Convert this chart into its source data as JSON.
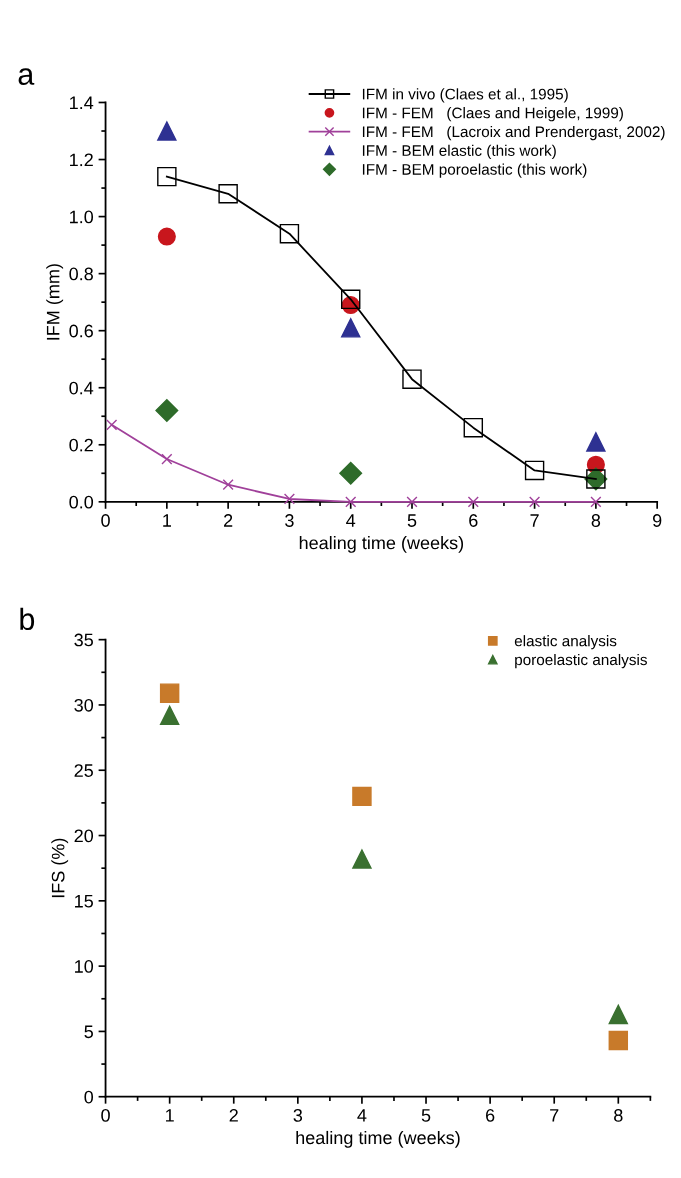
{
  "chart_data": [
    {
      "type": "scatter",
      "title": "a",
      "xlabel": "healing time (weeks)",
      "ylabel": "IFM (mm)",
      "xlim": [
        0,
        9
      ],
      "xticks": [
        0,
        1,
        2,
        3,
        4,
        5,
        6,
        7,
        8,
        9
      ],
      "ylim": [
        0,
        1.4
      ],
      "yticks": [
        {
          "value": 0,
          "label": "0.0"
        },
        0.2,
        0.4,
        0.6,
        0.8,
        {
          "value": 1.0,
          "label": "1.0"
        },
        1.2,
        1.4
      ],
      "grid": false,
      "legend": "top right",
      "series": [
        {
          "name": "IFM in vivo (Claes et al., 1995)",
          "type": "line",
          "marker": "square",
          "color": "#000000",
          "x": [
            1,
            2,
            3,
            4,
            5,
            6,
            7,
            8
          ],
          "values": [
            1.14,
            1.08,
            0.94,
            0.71,
            0.43,
            0.26,
            0.11,
            0.08
          ]
        },
        {
          "name": "IFM - FEM   (Claes and Heigele, 1999)",
          "marker": "circle",
          "color": "#c8161d",
          "x": [
            1,
            4,
            8
          ],
          "values": [
            0.93,
            0.69,
            0.13
          ]
        },
        {
          "name": "IFM - FEM   (Lacroix and Prendergast, 2002)",
          "type": "line",
          "marker": "cross",
          "color": "#a0409a",
          "x": [
            0.1,
            1,
            2,
            3,
            4,
            5,
            6,
            7,
            8
          ],
          "values": [
            0.27,
            0.15,
            0.06,
            0.01,
            0,
            0,
            0,
            0,
            0
          ]
        },
        {
          "name": "IFM - BEM elastic (this work)",
          "marker": "triangle",
          "color": "#2e3192",
          "x": [
            1,
            4,
            8
          ],
          "values": [
            1.3,
            0.61,
            0.21
          ]
        },
        {
          "name": "IFM - BEM poroelastic (this work)",
          "marker": "diamond",
          "color": "#2e6b2a",
          "x": [
            1,
            4,
            8
          ],
          "values": [
            0.32,
            0.1,
            0.08
          ]
        }
      ]
    },
    {
      "type": "scatter",
      "title": "b",
      "xlabel": "healing time (weeks)",
      "ylabel": "IFS (%)",
      "xlim": [
        0,
        8.5
      ],
      "xticks": [
        0,
        1,
        2,
        3,
        4,
        5,
        6,
        7,
        8
      ],
      "ylim": [
        0,
        35
      ],
      "yticks": [
        0,
        5,
        10,
        15,
        20,
        25,
        30,
        35
      ],
      "grid": false,
      "legend": "top right",
      "series": [
        {
          "name": "elastic analysis",
          "marker": "square",
          "color": "#c87a2a",
          "x": [
            1,
            4,
            8
          ],
          "values": [
            30.9,
            23.0,
            4.3
          ]
        },
        {
          "name": "poroelastic analysis",
          "marker": "triangle",
          "color": "#3a7030",
          "x": [
            1,
            4,
            8
          ],
          "values": [
            29.2,
            18.2,
            6.3
          ]
        }
      ]
    }
  ]
}
